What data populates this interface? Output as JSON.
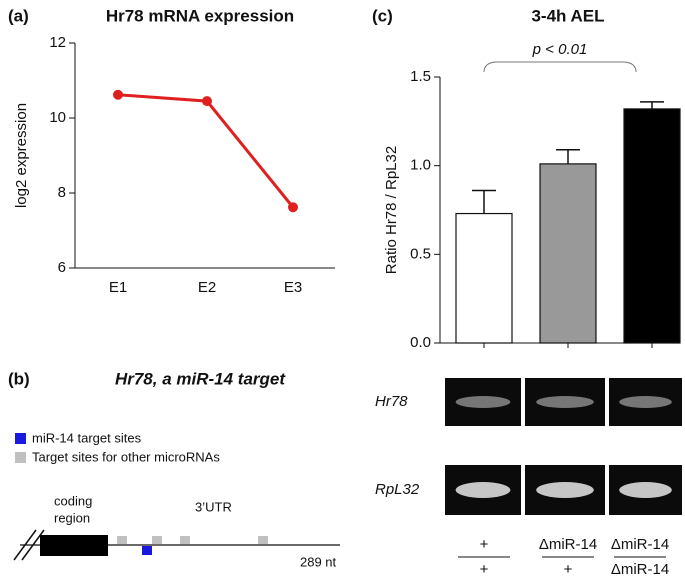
{
  "chart_data": [
    {
      "type": "line",
      "panel_label": "(a)",
      "title": "Hr78 mRNA expression",
      "ylabel": "log2 expression",
      "categories": [
        "E1",
        "E2",
        "E3"
      ],
      "values": [
        10.62,
        10.45,
        7.62
      ],
      "color": "#e02020",
      "ylim": [
        6,
        12
      ],
      "yticks": [
        6,
        8,
        10,
        12
      ]
    },
    {
      "type": "bar",
      "panel_label": "(c)",
      "title": "3-4h AEL",
      "ylabel": "Ratio Hr78 / RpL32",
      "annotation": "p < 0.01",
      "categories": [
        null,
        null,
        null
      ],
      "values": [
        0.73,
        1.01,
        1.32
      ],
      "errors": [
        0.13,
        0.08,
        0.04
      ],
      "colors": [
        "#ffffff",
        "#999999",
        "#000000"
      ],
      "ylim": [
        0,
        1.5
      ],
      "yticks": [
        {
          "value": 0,
          "label": "0.0"
        },
        {
          "value": 0.5,
          "label": "0.5"
        },
        {
          "value": 1,
          "label": "1.0"
        },
        {
          "value": 1.5,
          "label": "1.5"
        }
      ]
    }
  ],
  "diagram": {
    "panel_label": "(b)",
    "title": "Hr78, a miR-14 target",
    "legend": [
      "miR-14 target sites",
      "Target sites for other microRNAs"
    ],
    "coding_region": [
      "coding",
      "region"
    ],
    "utr": "3’UTR",
    "length": "289 nt"
  },
  "gel": {
    "rows": [
      "Hr78",
      "RpL32"
    ],
    "genotypes": [
      {
        "top": "+",
        "bottom": "+"
      },
      {
        "top": "ΔmiR-14",
        "bottom": "+"
      },
      {
        "top": "ΔmiR-14",
        "bottom": "ΔmiR-14"
      }
    ]
  }
}
